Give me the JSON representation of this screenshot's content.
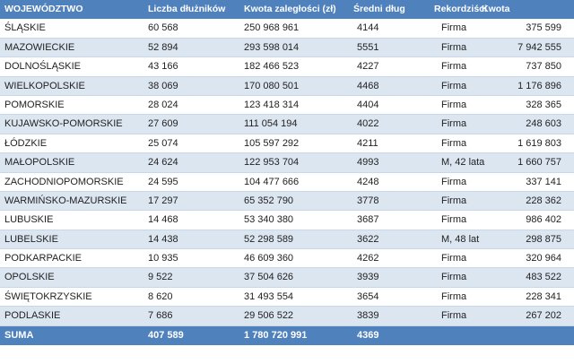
{
  "header": [
    "WOJEWÓDZTWO",
    "Liczba dłużników",
    "Kwota zaległości (zł)",
    "Średni dług",
    "Rekordziści",
    "Kwota"
  ],
  "rows": [
    [
      "ŚLĄSKIE",
      "60 568",
      "250 968 961",
      "4144",
      "Firma",
      "375 599"
    ],
    [
      "MAZOWIECKIE",
      "52 894",
      "293 598 014",
      "5551",
      "Firma",
      "7 942 555"
    ],
    [
      "DOLNOŚLĄSKIE",
      "43 166",
      "182 466 523",
      "4227",
      "Firma",
      "737 850"
    ],
    [
      "WIELKOPOLSKIE",
      "38 069",
      "170 080 501",
      "4468",
      "Firma",
      "1 176 896"
    ],
    [
      "POMORSKIE",
      "28 024",
      "123 418 314",
      "4404",
      "Firma",
      "328 365"
    ],
    [
      "KUJAWSKO-POMORSKIE",
      "27 609",
      "111 054 194",
      "4022",
      "Firma",
      "248 603"
    ],
    [
      "ŁÓDZKIE",
      "25 074",
      "105 597 292",
      "4211",
      "Firma",
      "1 619 803"
    ],
    [
      "MAŁOPOLSKIE",
      "24 624",
      "122 953 704",
      "4993",
      "M, 42 lata",
      "1 660 757"
    ],
    [
      "ZACHODNIOPOMORSKIE",
      "24 595",
      "104 477 666",
      "4248",
      "Firma",
      "337 141"
    ],
    [
      "WARMIŃSKO-MAZURSKIE",
      "17 297",
      "65 352 790",
      "3778",
      "Firma",
      "228 362"
    ],
    [
      "LUBUSKIE",
      "14 468",
      "53 340 380",
      "3687",
      "Firma",
      "986 402"
    ],
    [
      "LUBELSKIE",
      "14 438",
      "52 298 589",
      "3622",
      "M, 48 lat",
      "298 875"
    ],
    [
      "PODKARPACKIE",
      "10 935",
      "46 609 360",
      "4262",
      "Firma",
      "320 964"
    ],
    [
      "OPOLSKIE",
      "9 522",
      "37 504 626",
      "3939",
      "Firma",
      "483 522"
    ],
    [
      "ŚWIĘTOKRZYSKIE",
      "8 620",
      "31 493 554",
      "3654",
      "Firma",
      "228 341"
    ],
    [
      "PODLASKIE",
      "7 686",
      "29 506 522",
      "3839",
      "Firma",
      "267 202"
    ]
  ],
  "total": [
    "SUMA",
    "407 589",
    "1 780 720 991",
    "4369",
    "",
    ""
  ],
  "colors": {
    "header": "#4f81bd",
    "stripe": "#dce6f1"
  }
}
